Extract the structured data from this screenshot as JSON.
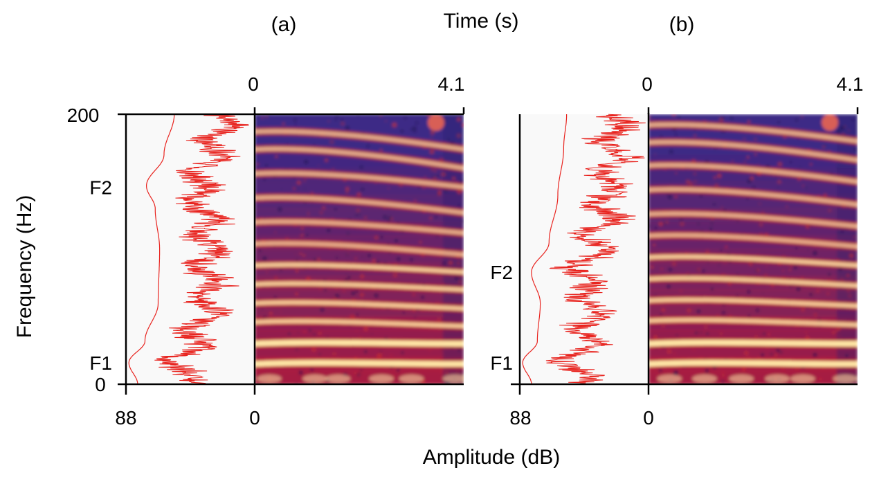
{
  "figure": {
    "panel_labels": [
      "(a)",
      "(b)"
    ],
    "time_axis_label": "Time (s)",
    "frequency_axis_label": "Frequency (Hz)",
    "amplitude_axis_label": "Amplitude (dB)"
  },
  "colors": {
    "spectrum_line": "#e8231e",
    "formant_label": "#e8452a",
    "spectrogram_low": "#3d2a86",
    "spectrogram_mid": "#c8182c",
    "spectrogram_high": "#ffe7a6"
  },
  "chart_data": [
    {
      "type": "heatmap",
      "panel": "(a)",
      "xlabel": "Time (s)",
      "ylabel": "Frequency (Hz)",
      "xlim": [
        0,
        4.1
      ],
      "ylim": [
        0,
        200
      ],
      "x_ticks": [
        "0",
        "4.1"
      ],
      "y_ticks": [
        "0",
        "200"
      ],
      "harmonic_tracks": [
        {
          "start": 15,
          "end": 15
        },
        {
          "start": 30,
          "end": 30
        },
        {
          "start": 46,
          "end": 43
        },
        {
          "start": 60,
          "end": 56
        },
        {
          "start": 74,
          "end": 70
        },
        {
          "start": 88,
          "end": 83
        },
        {
          "start": 104,
          "end": 96
        },
        {
          "start": 120,
          "end": 112
        },
        {
          "start": 138,
          "end": 127
        },
        {
          "start": 156,
          "end": 146
        },
        {
          "start": 174,
          "end": 160
        },
        {
          "start": 187,
          "end": 174
        }
      ],
      "spectrum": {
        "type": "line",
        "xlabel": "Amplitude (dB)",
        "xlim": [
          88,
          0
        ],
        "x_ticks": [
          "88",
          "0"
        ],
        "envelope": [
          {
            "f": 0,
            "db": 80
          },
          {
            "f": 16,
            "db": 86
          },
          {
            "f": 32,
            "db": 75
          },
          {
            "f": 60,
            "db": 66
          },
          {
            "f": 100,
            "db": 65
          },
          {
            "f": 130,
            "db": 68
          },
          {
            "f": 147,
            "db": 74
          },
          {
            "f": 170,
            "db": 62
          },
          {
            "f": 200,
            "db": 55
          }
        ],
        "formants": [
          {
            "label": "F1",
            "freq": 16
          },
          {
            "label": "F2",
            "freq": 146
          }
        ]
      }
    },
    {
      "type": "heatmap",
      "panel": "(b)",
      "xlabel": "Time (s)",
      "ylabel": "Frequency (Hz)",
      "xlim": [
        0,
        4.1
      ],
      "ylim": [
        0,
        200
      ],
      "x_ticks": [
        "0",
        "4.1"
      ],
      "y_ticks": [
        "0",
        "200"
      ],
      "harmonic_tracks": [
        {
          "start": 15,
          "end": 15
        },
        {
          "start": 30,
          "end": 30
        },
        {
          "start": 47,
          "end": 44
        },
        {
          "start": 62,
          "end": 58
        },
        {
          "start": 78,
          "end": 73
        },
        {
          "start": 94,
          "end": 88
        },
        {
          "start": 110,
          "end": 102
        },
        {
          "start": 126,
          "end": 117
        },
        {
          "start": 144,
          "end": 133
        },
        {
          "start": 162,
          "end": 150
        },
        {
          "start": 179,
          "end": 166
        },
        {
          "start": 192,
          "end": 180
        }
      ],
      "spectrum": {
        "type": "line",
        "xlabel": "Amplitude (dB)",
        "xlim": [
          88,
          0
        ],
        "x_ticks": [
          "88",
          "0"
        ],
        "envelope": [
          {
            "f": 0,
            "db": 80
          },
          {
            "f": 16,
            "db": 86
          },
          {
            "f": 32,
            "db": 76
          },
          {
            "f": 60,
            "db": 74
          },
          {
            "f": 83,
            "db": 80
          },
          {
            "f": 105,
            "db": 68
          },
          {
            "f": 140,
            "db": 62
          },
          {
            "f": 175,
            "db": 58
          },
          {
            "f": 200,
            "db": 56
          }
        ],
        "formants": [
          {
            "label": "F1",
            "freq": 16
          },
          {
            "label": "F2",
            "freq": 83
          }
        ]
      }
    }
  ]
}
